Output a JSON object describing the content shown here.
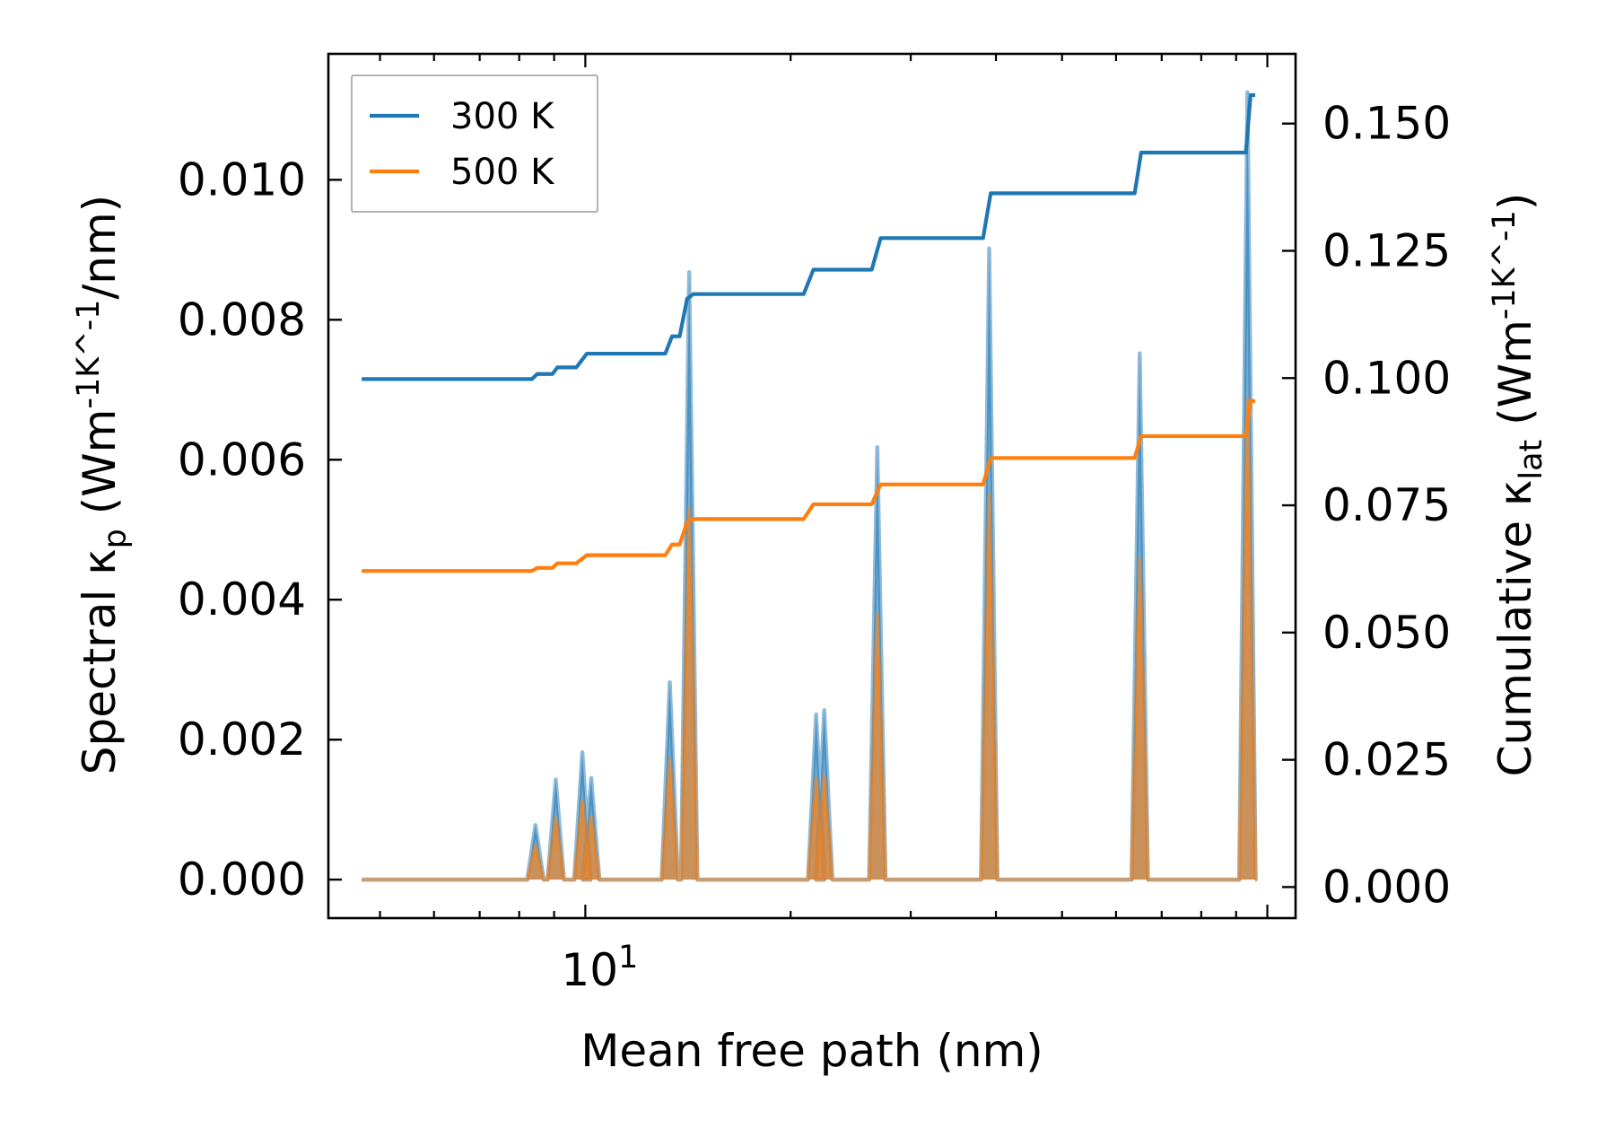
{
  "chart_data": {
    "type": "line",
    "x_scale": "log",
    "xlabel": "Mean free path (nm)",
    "ylabel_left": "Spectral κ_p (Wm^-1K^-1/nm)",
    "ylabel_right": "Cumulative κ_lat (Wm^-1K^-1)",
    "xlim": [
      4.2,
      110
    ],
    "ylim_left": [
      -0.00055,
      0.0118
    ],
    "ylim_right": [
      -0.0061,
      0.1637
    ],
    "x_ticks": [
      {
        "value": 10,
        "base": "10",
        "exponent": "1"
      }
    ],
    "y_ticks_left": [
      {
        "value": 0.0,
        "label": "0.000"
      },
      {
        "value": 0.002,
        "label": "0.002"
      },
      {
        "value": 0.004,
        "label": "0.004"
      },
      {
        "value": 0.006,
        "label": "0.006"
      },
      {
        "value": 0.008,
        "label": "0.008"
      },
      {
        "value": 0.01,
        "label": "0.010"
      }
    ],
    "y_ticks_right": [
      {
        "value": 0.0,
        "label": "0.000"
      },
      {
        "value": 0.025,
        "label": "0.025"
      },
      {
        "value": 0.05,
        "label": "0.050"
      },
      {
        "value": 0.075,
        "label": "0.075"
      },
      {
        "value": 0.1,
        "label": "0.100"
      },
      {
        "value": 0.125,
        "label": "0.125"
      },
      {
        "value": 0.15,
        "label": "0.150"
      }
    ],
    "legend": {
      "placement": "upper-left",
      "entries": [
        {
          "label": "300 K",
          "color": "#1f77b4"
        },
        {
          "label": "500 K",
          "color": "#ff7f0e"
        }
      ]
    },
    "spectral_series": [
      {
        "name": "300 K",
        "color": "#1f77b4",
        "peaks": [
          {
            "x": 8.45,
            "y": 0.00078,
            "w": 0.012
          },
          {
            "x": 9.05,
            "y": 0.00143,
            "w": 0.012
          },
          {
            "x": 9.9,
            "y": 0.00182,
            "w": 0.012
          },
          {
            "x": 10.2,
            "y": 0.00145,
            "w": 0.012
          },
          {
            "x": 13.3,
            "y": 0.00282,
            "w": 0.012
          },
          {
            "x": 14.2,
            "y": 0.00868,
            "w": 0.012
          },
          {
            "x": 21.8,
            "y": 0.00236,
            "w": 0.012
          },
          {
            "x": 22.4,
            "y": 0.00242,
            "w": 0.012
          },
          {
            "x": 26.8,
            "y": 0.00618,
            "w": 0.012
          },
          {
            "x": 39.1,
            "y": 0.00902,
            "w": 0.012
          },
          {
            "x": 65.0,
            "y": 0.00752,
            "w": 0.012
          },
          {
            "x": 93.5,
            "y": 0.01125,
            "w": 0.012
          }
        ]
      },
      {
        "name": "500 K",
        "color": "#ff7f0e",
        "peaks": [
          {
            "x": 8.45,
            "y": 0.00049,
            "w": 0.012
          },
          {
            "x": 9.05,
            "y": 0.00088,
            "w": 0.012
          },
          {
            "x": 9.9,
            "y": 0.00112,
            "w": 0.012
          },
          {
            "x": 10.2,
            "y": 0.0009,
            "w": 0.012
          },
          {
            "x": 13.3,
            "y": 0.00172,
            "w": 0.012
          },
          {
            "x": 14.2,
            "y": 0.0053,
            "w": 0.012
          },
          {
            "x": 21.8,
            "y": 0.00144,
            "w": 0.012
          },
          {
            "x": 22.4,
            "y": 0.00148,
            "w": 0.012
          },
          {
            "x": 26.8,
            "y": 0.00378,
            "w": 0.012
          },
          {
            "x": 39.1,
            "y": 0.0055,
            "w": 0.012
          },
          {
            "x": 65.0,
            "y": 0.00458,
            "w": 0.012
          },
          {
            "x": 93.5,
            "y": 0.00687,
            "w": 0.012
          }
        ]
      }
    ],
    "cumulative_series": [
      {
        "name": "300 K",
        "color": "#1f77b4",
        "x": [
          4.7,
          8.35,
          8.5,
          8.95,
          9.1,
          9.7,
          10.05,
          10.5,
          13.1,
          13.4,
          13.75,
          14.1,
          14.4,
          20.9,
          21.6,
          22.5,
          26.3,
          27.1,
          38.3,
          39.3,
          63.9,
          65.3,
          91.5,
          93.0,
          94.5,
          96.0
        ],
        "y": [
          0.0998,
          0.0998,
          0.1008,
          0.1008,
          0.1021,
          0.1021,
          0.1048,
          0.1048,
          0.1048,
          0.1082,
          0.1082,
          0.1156,
          0.1165,
          0.1165,
          0.1213,
          0.1213,
          0.1213,
          0.1275,
          0.1275,
          0.1363,
          0.1363,
          0.1443,
          0.1443,
          0.1443,
          0.1556,
          0.1556
        ]
      },
      {
        "name": "500 K",
        "color": "#ff7f0e",
        "x": [
          4.7,
          8.35,
          8.5,
          8.95,
          9.1,
          9.7,
          10.05,
          10.5,
          13.1,
          13.4,
          13.75,
          14.1,
          14.4,
          20.9,
          21.6,
          22.5,
          26.3,
          27.1,
          38.3,
          39.3,
          63.9,
          65.3,
          91.5,
          93.0,
          94.5,
          96.0
        ],
        "y": [
          0.0621,
          0.0621,
          0.0627,
          0.0627,
          0.0636,
          0.0636,
          0.0652,
          0.0652,
          0.0652,
          0.0673,
          0.0673,
          0.0717,
          0.0723,
          0.0723,
          0.0752,
          0.0752,
          0.0752,
          0.0791,
          0.0791,
          0.0843,
          0.0843,
          0.0886,
          0.0886,
          0.0886,
          0.0955,
          0.0955
        ]
      }
    ]
  }
}
